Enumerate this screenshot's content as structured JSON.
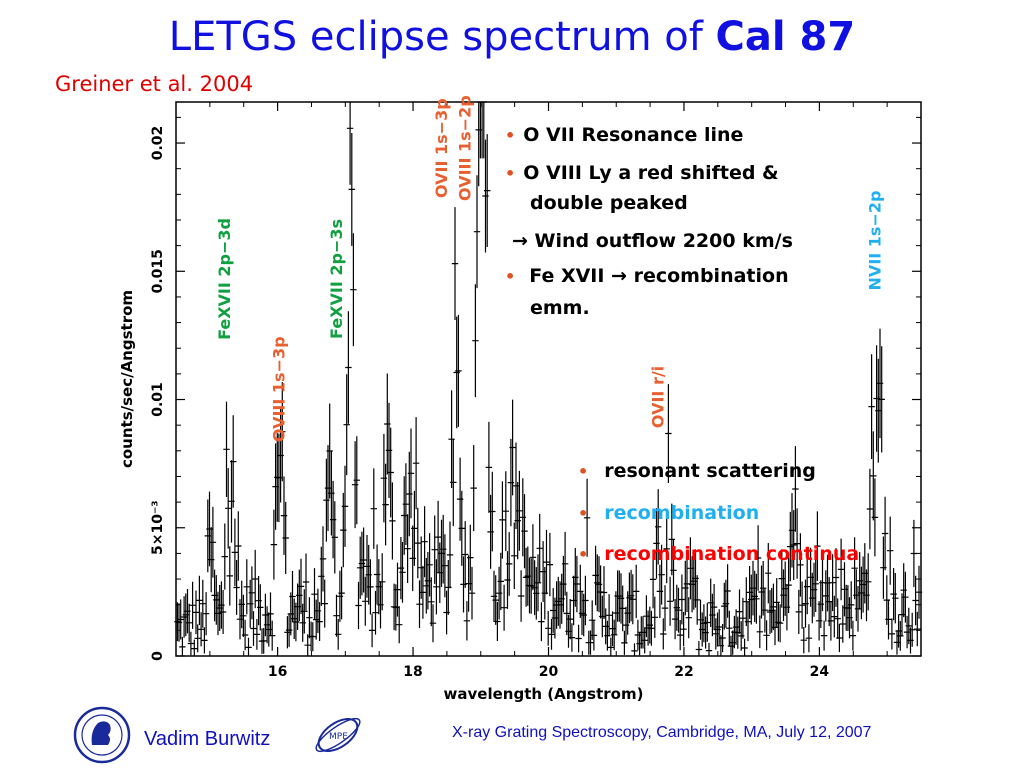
{
  "slide": {
    "title_main": "LETGS eclipse spectrum of ",
    "title_bold": "Cal 87",
    "subtitle": "Greiner et al. 2004",
    "bullets_top": [
      "O VII Resonance line",
      "O VIII Ly a red shifted &",
      "double peaked",
      "→ Wind outflow 2200 km/s",
      "Fe XVII → recombination",
      "emm."
    ],
    "bullets_bottom": [
      {
        "text": "resonant scattering",
        "color": "#000000"
      },
      {
        "text": "recombination",
        "color": "#20b0f0"
      },
      {
        "text": "recombination continua",
        "color": "#ff0000"
      }
    ],
    "footer_author": "Vadim Burwitz",
    "footer_conference": "X-ray Grating Spectroscopy, Cambridge, MA, July 12, 2007",
    "logo_right_text": "MPE"
  },
  "chart_data": {
    "type": "line",
    "xlabel": "wavelength (Angstrom)",
    "ylabel": "counts/sec/Angstrom",
    "xlim": [
      14.5,
      25.5
    ],
    "ylim": [
      0,
      0.0216
    ],
    "x_ticks": [
      16,
      18,
      20,
      22,
      24
    ],
    "y_ticks": [
      {
        "value": 0,
        "label": "0"
      },
      {
        "value": 0.005,
        "label": "5×10⁻³"
      },
      {
        "value": 0.01,
        "label": "0.01"
      },
      {
        "value": 0.015,
        "label": "0.015"
      },
      {
        "value": 0.02,
        "label": "0.02"
      }
    ],
    "line_labels": [
      {
        "text": "FeXVII 2p−3d",
        "x": 15.3,
        "y": 0.0147,
        "color": "#10a040"
      },
      {
        "text": "OVIII 1s−3p",
        "x": 16.1,
        "y": 0.0104,
        "color": "#e86030"
      },
      {
        "text": "FeXVII 2p−3s",
        "x": 16.95,
        "y": 0.0147,
        "color": "#10a040"
      },
      {
        "text": "OVII 1s−3p",
        "x": 18.5,
        "y": 0.0198,
        "color": "#e86030"
      },
      {
        "text": "OVIII 1s−2p",
        "x": 18.85,
        "y": 0.0198,
        "color": "#e86030"
      },
      {
        "text": "OVII r/i",
        "x": 21.7,
        "y": 0.0101,
        "color": "#e86030"
      },
      {
        "text": "NVII 1s−2p",
        "x": 24.9,
        "y": 0.0162,
        "color": "#20b0f0"
      }
    ],
    "continuum": [
      [
        14.5,
        0.001
      ],
      [
        15.0,
        0.0013
      ],
      [
        15.5,
        0.0016
      ],
      [
        16.0,
        0.0018
      ],
      [
        16.5,
        0.0018
      ],
      [
        17.0,
        0.002
      ],
      [
        17.5,
        0.0024
      ],
      [
        18.0,
        0.0027
      ],
      [
        18.5,
        0.003
      ],
      [
        19.0,
        0.0032
      ],
      [
        19.5,
        0.003
      ],
      [
        20.0,
        0.0025
      ],
      [
        20.5,
        0.002
      ],
      [
        21.0,
        0.0015
      ],
      [
        21.5,
        0.0012
      ],
      [
        22.0,
        0.0011
      ],
      [
        22.5,
        0.0013
      ],
      [
        23.0,
        0.0016
      ],
      [
        23.5,
        0.0019
      ],
      [
        24.0,
        0.0021
      ],
      [
        24.5,
        0.0022
      ],
      [
        25.0,
        0.002
      ],
      [
        25.5,
        0.0017
      ]
    ],
    "lines": [
      {
        "center": 15.01,
        "peak": 0.0028,
        "width": 0.04
      },
      {
        "center": 15.26,
        "peak": 0.0068,
        "width": 0.03
      },
      {
        "center": 15.34,
        "peak": 0.008,
        "width": 0.02
      },
      {
        "center": 16.0,
        "peak": 0.0045,
        "width": 0.04
      },
      {
        "center": 16.07,
        "peak": 0.0049,
        "width": 0.03
      },
      {
        "center": 16.78,
        "peak": 0.0045,
        "width": 0.05
      },
      {
        "center": 17.05,
        "peak": 0.0085,
        "width": 0.05
      },
      {
        "center": 17.1,
        "peak": 0.0115,
        "width": 0.03
      },
      {
        "center": 17.62,
        "peak": 0.005,
        "width": 0.05
      },
      {
        "center": 17.95,
        "peak": 0.004,
        "width": 0.06
      },
      {
        "center": 18.63,
        "peak": 0.009,
        "width": 0.04
      },
      {
        "center": 18.97,
        "peak": 0.016,
        "width": 0.04
      },
      {
        "center": 19.05,
        "peak": 0.02,
        "width": 0.05
      },
      {
        "center": 19.5,
        "peak": 0.003,
        "width": 0.08
      },
      {
        "center": 21.6,
        "peak": 0.002,
        "width": 0.05
      },
      {
        "center": 21.8,
        "peak": 0.0025,
        "width": 0.05
      },
      {
        "center": 22.1,
        "peak": 0.0018,
        "width": 0.05
      },
      {
        "center": 23.6,
        "peak": 0.0055,
        "width": 0.05
      },
      {
        "center": 24.78,
        "peak": 0.006,
        "width": 0.05
      },
      {
        "center": 24.9,
        "peak": 0.0072,
        "width": 0.04
      }
    ],
    "colors": {
      "axis": "#000000",
      "trace": "#000000"
    }
  }
}
